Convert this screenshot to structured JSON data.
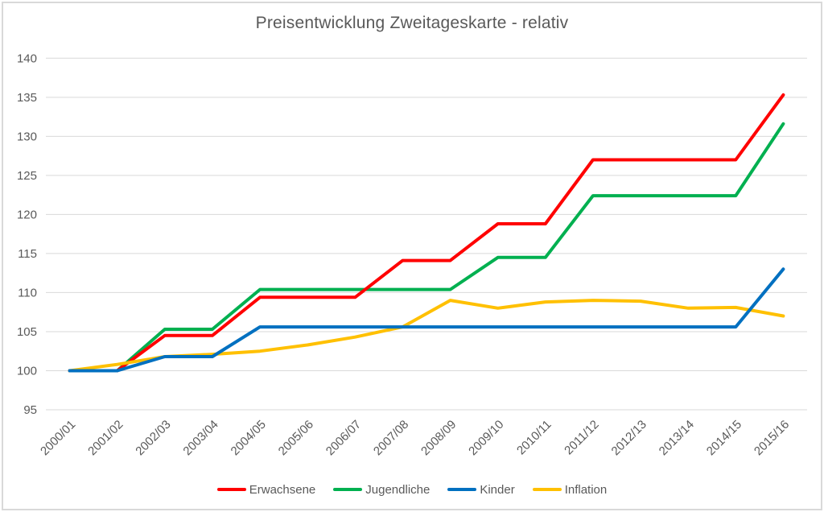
{
  "chart_data": {
    "type": "line",
    "title": "Preisentwicklung Zweitageskarte - relativ",
    "categories": [
      "2000/01",
      "2001/02",
      "2002/03",
      "2003/04",
      "2004/05",
      "2005/06",
      "2006/07",
      "2007/08",
      "2008/09",
      "2009/10",
      "2010/11",
      "2011/12",
      "2012/13",
      "2013/14",
      "2014/15",
      "2015/16"
    ],
    "series": [
      {
        "name": "Erwachsene",
        "color": "#FF0000",
        "values": [
          100,
          100,
          104.5,
          104.5,
          109.4,
          109.4,
          109.4,
          114.1,
          114.1,
          118.8,
          118.8,
          127.0,
          127.0,
          127.0,
          127.0,
          135.3
        ]
      },
      {
        "name": "Jugendliche",
        "color": "#00B050",
        "values": [
          100,
          100,
          105.3,
          105.3,
          110.4,
          110.4,
          110.4,
          110.4,
          110.4,
          114.5,
          114.5,
          122.4,
          122.4,
          122.4,
          122.4,
          131.6
        ]
      },
      {
        "name": "Kinder",
        "color": "#0070C0",
        "values": [
          100,
          100,
          101.8,
          101.8,
          105.6,
          105.6,
          105.6,
          105.6,
          105.6,
          105.6,
          105.6,
          105.6,
          105.6,
          105.6,
          105.6,
          113.0
        ]
      },
      {
        "name": "Inflation",
        "color": "#FFC000",
        "values": [
          100,
          100.8,
          101.8,
          102.1,
          102.5,
          103.3,
          104.3,
          105.6,
          109.0,
          108.0,
          108.8,
          109.0,
          108.9,
          108.0,
          108.1,
          107.0
        ]
      }
    ],
    "xlabel": "",
    "ylabel": "",
    "ylim": [
      95,
      140
    ],
    "yticks": [
      95,
      100,
      105,
      110,
      115,
      120,
      125,
      130,
      135,
      140
    ],
    "x_label_rotation_deg": 45,
    "grid": true,
    "legend_position": "bottom",
    "draw_order": [
      1,
      0,
      3,
      2
    ],
    "grid_color": "#D9D9D9",
    "axis_text_color": "#595959",
    "border_color": "#D9D9D9"
  }
}
